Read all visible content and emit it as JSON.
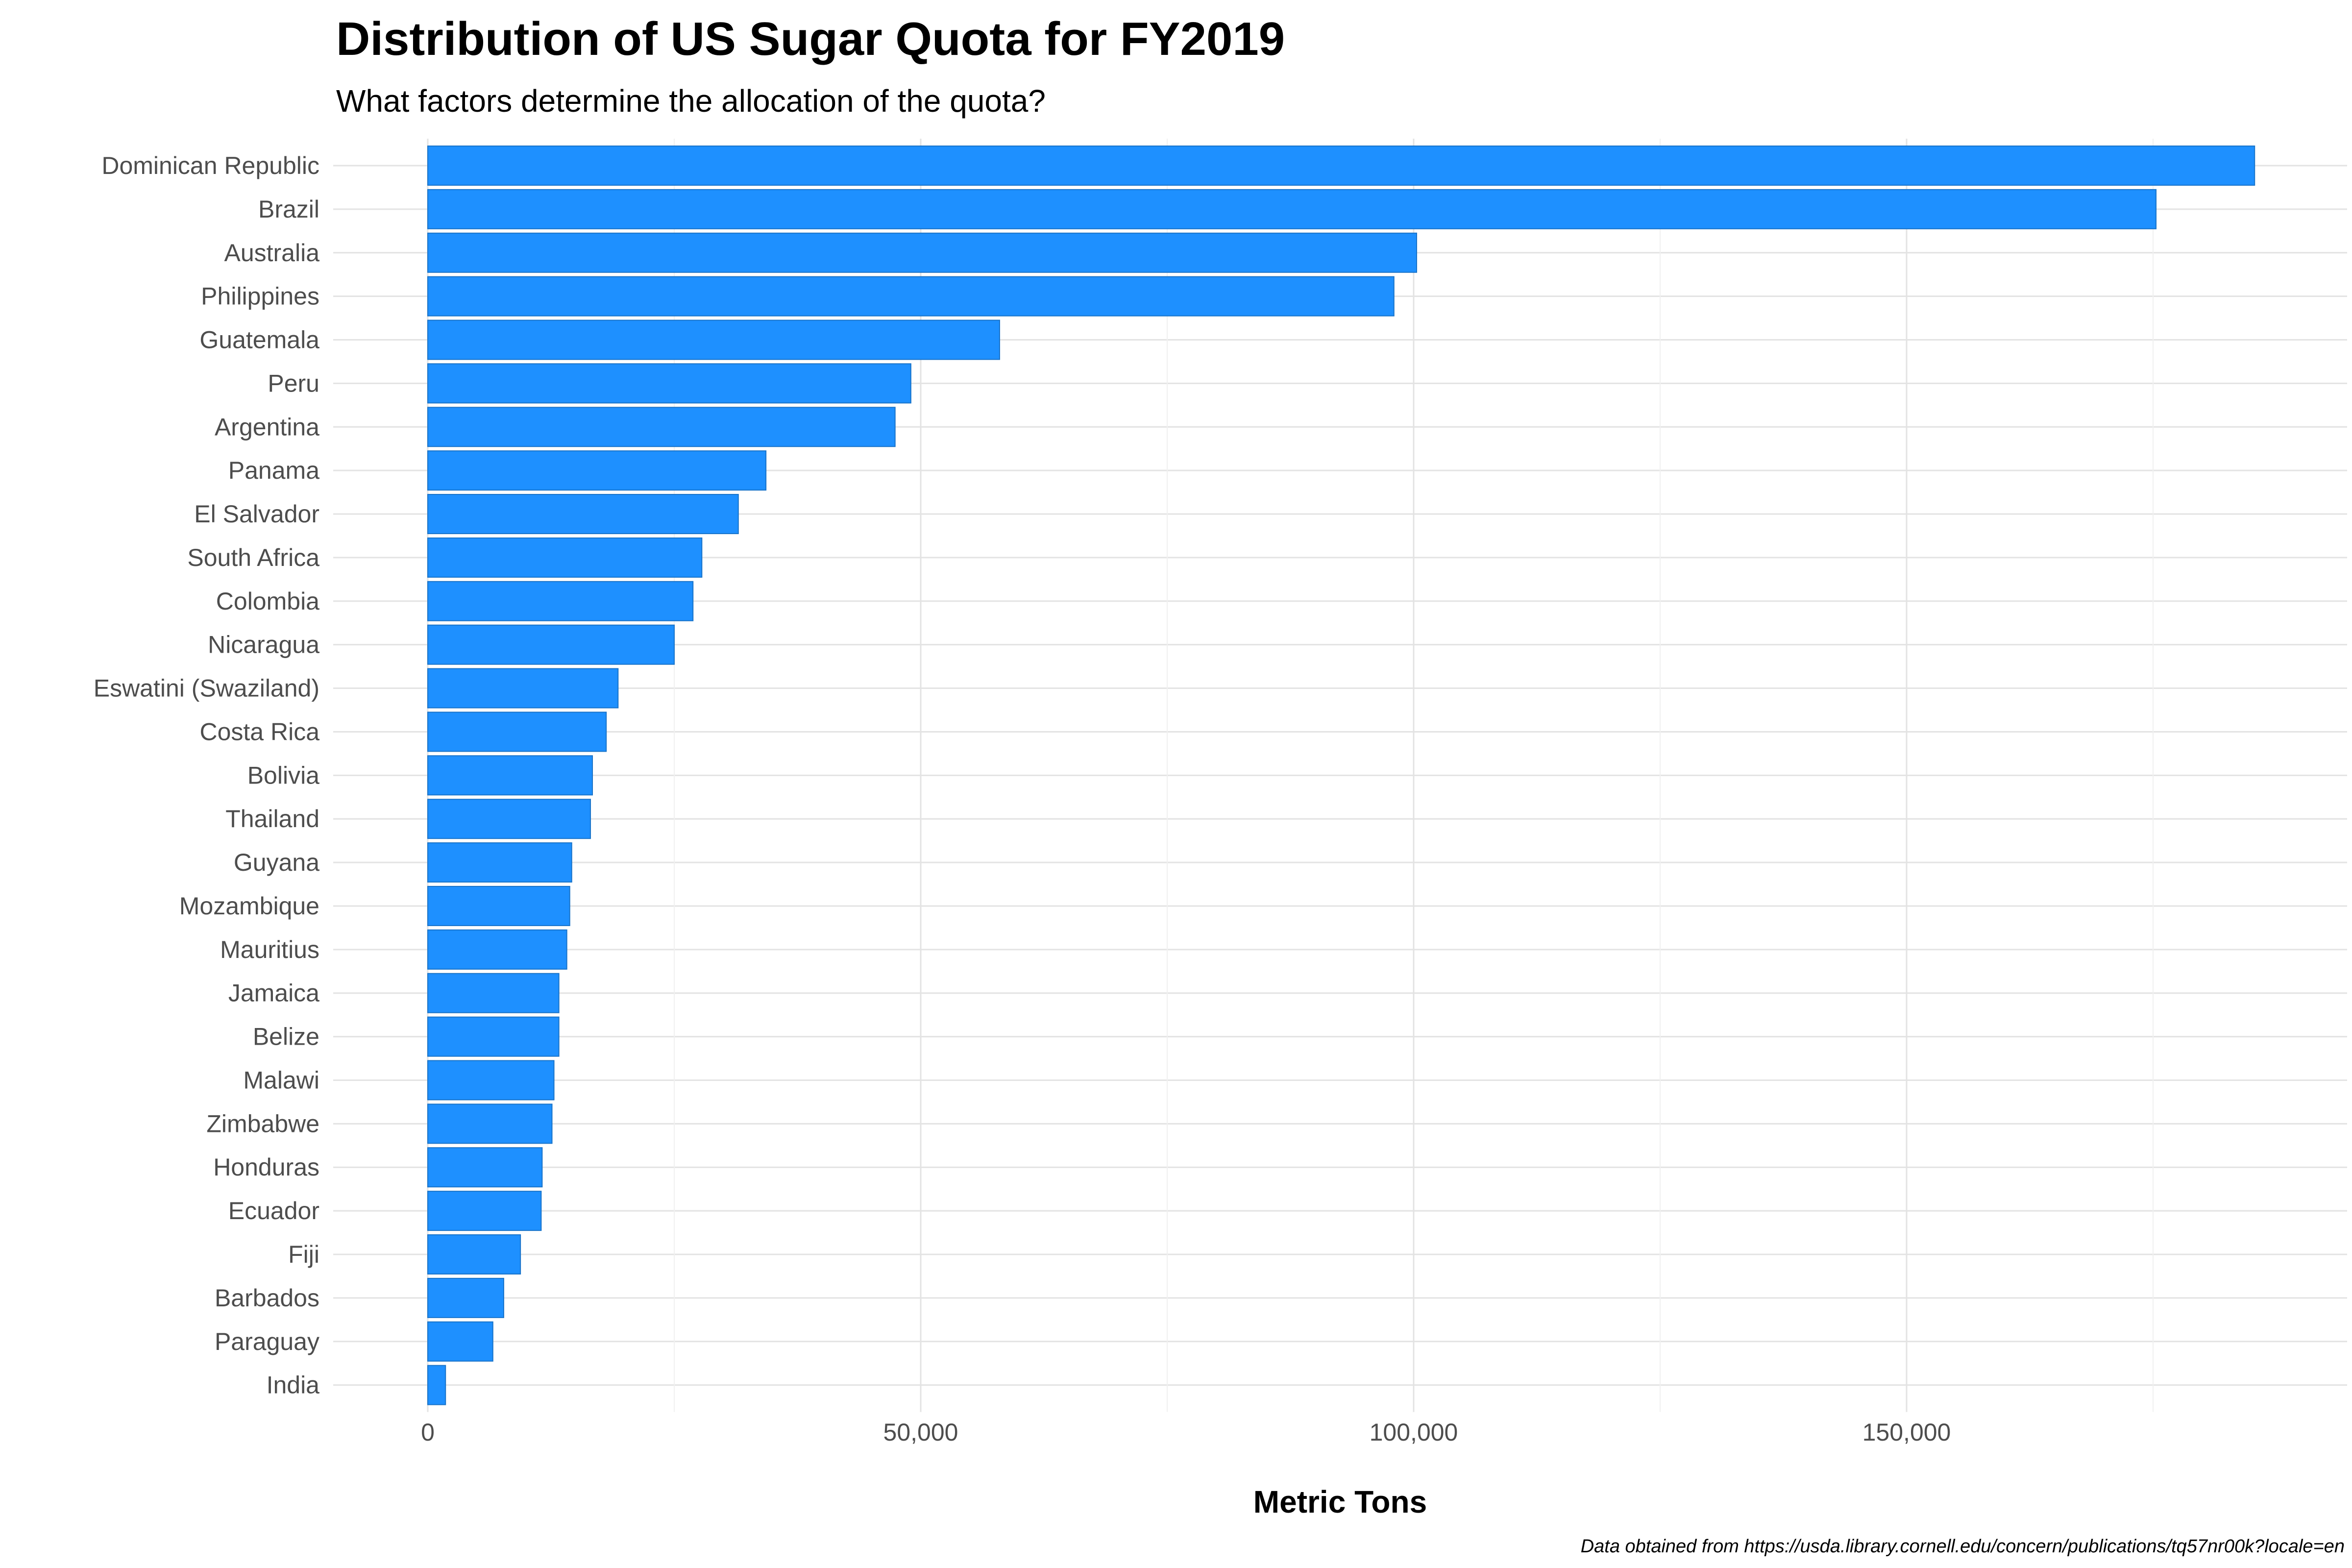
{
  "chart_data": {
    "type": "bar",
    "orientation": "horizontal",
    "title": "Distribution of US Sugar Quota for FY2019",
    "subtitle": "What factors determine the allocation of the quota?",
    "xlabel": "Metric Tons",
    "ylabel": "",
    "caption": "Data obtained from https://usda.library.cornell.edu/concern/publications/tq57nr00k?locale=en",
    "xlim": [
      0,
      189000
    ],
    "xticks": [
      0,
      50000,
      100000,
      150000
    ],
    "xtick_labels": [
      "0",
      "50,000",
      "100,000",
      "150,000"
    ],
    "grid": true,
    "bar_color": "#1e90ff",
    "categories": [
      "Dominican Republic",
      "Brazil",
      "Australia",
      "Philippines",
      "Guatemala",
      "Peru",
      "Argentina",
      "Panama",
      "El Salvador",
      "South Africa",
      "Colombia",
      "Nicaragua",
      "Eswatini (Swaziland)",
      "Costa Rica",
      "Bolivia",
      "Thailand",
      "Guyana",
      "Mozambique",
      "Mauritius",
      "Jamaica",
      "Belize",
      "Malawi",
      "Zimbabwe",
      "Honduras",
      "Ecuador",
      "Fiji",
      "Barbados",
      "Paraguay",
      "India"
    ],
    "values": [
      185300,
      175300,
      100300,
      98000,
      58000,
      49000,
      47400,
      34300,
      31500,
      27800,
      26900,
      25000,
      19300,
      18100,
      16700,
      16500,
      14600,
      14400,
      14100,
      13300,
      13300,
      12800,
      12600,
      11600,
      11500,
      9400,
      7700,
      6600,
      1800
    ]
  }
}
